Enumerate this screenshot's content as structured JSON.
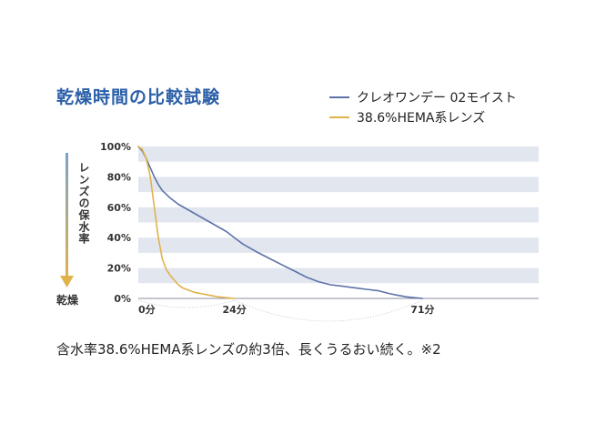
{
  "title": "乾燥時間の比較試験",
  "footnote": "含水率38.6%HEMA系レンズの約3倍、長くうるおい続く。※2",
  "axis_title_vertical": "レンズの保水率",
  "dry_label": "乾燥",
  "colors": {
    "title": "#2b5fa8",
    "series_a": "#5d72a8",
    "series_b": "#e0b24a",
    "band": "#e2e6ef",
    "arrow_top": "#7aa3c8",
    "arrow_bottom": "#e0b24a"
  },
  "chart_data": {
    "type": "line",
    "title": "乾燥時間の比較試験",
    "xlabel": "",
    "ylabel": "レンズの保水率",
    "xlim": [
      0,
      100
    ],
    "ylim": [
      0,
      100
    ],
    "yticks": [
      "0%",
      "20%",
      "40%",
      "60%",
      "80%",
      "100%"
    ],
    "ytick_values": [
      0,
      20,
      40,
      60,
      80,
      100
    ],
    "xticks": [
      "0分",
      "24分",
      "71分"
    ],
    "xtick_values": [
      0,
      24,
      71
    ],
    "grid": "horizontal bands",
    "legend": "top-right",
    "series": [
      {
        "name": "クレオワンデー 02モイスト",
        "color": "#5d72a8",
        "x": [
          0,
          1,
          2,
          3,
          4,
          5,
          6,
          8,
          10,
          12,
          14,
          16,
          18,
          20,
          22,
          24,
          26,
          28,
          30,
          33,
          36,
          39,
          42,
          45,
          48,
          51,
          54,
          57,
          60,
          63,
          65,
          67,
          69,
          71
        ],
        "y": [
          100,
          97,
          92,
          86,
          80,
          75,
          71,
          66,
          62,
          59,
          56,
          53,
          50,
          47,
          44,
          40,
          36,
          33,
          30,
          26,
          22,
          18,
          14,
          11,
          9,
          8,
          7,
          6,
          5,
          3,
          2,
          1,
          0.5,
          0
        ]
      },
      {
        "name": "38.6%HEMA系レンズ",
        "color": "#e0b24a",
        "x": [
          0,
          1,
          2,
          3,
          4,
          5,
          6,
          7,
          8,
          9,
          10,
          11,
          12,
          14,
          16,
          18,
          20,
          22,
          24
        ],
        "y": [
          100,
          98,
          92,
          80,
          60,
          40,
          26,
          19,
          15,
          12,
          9,
          7,
          6,
          4,
          3,
          2,
          1,
          0.5,
          0
        ]
      }
    ]
  }
}
